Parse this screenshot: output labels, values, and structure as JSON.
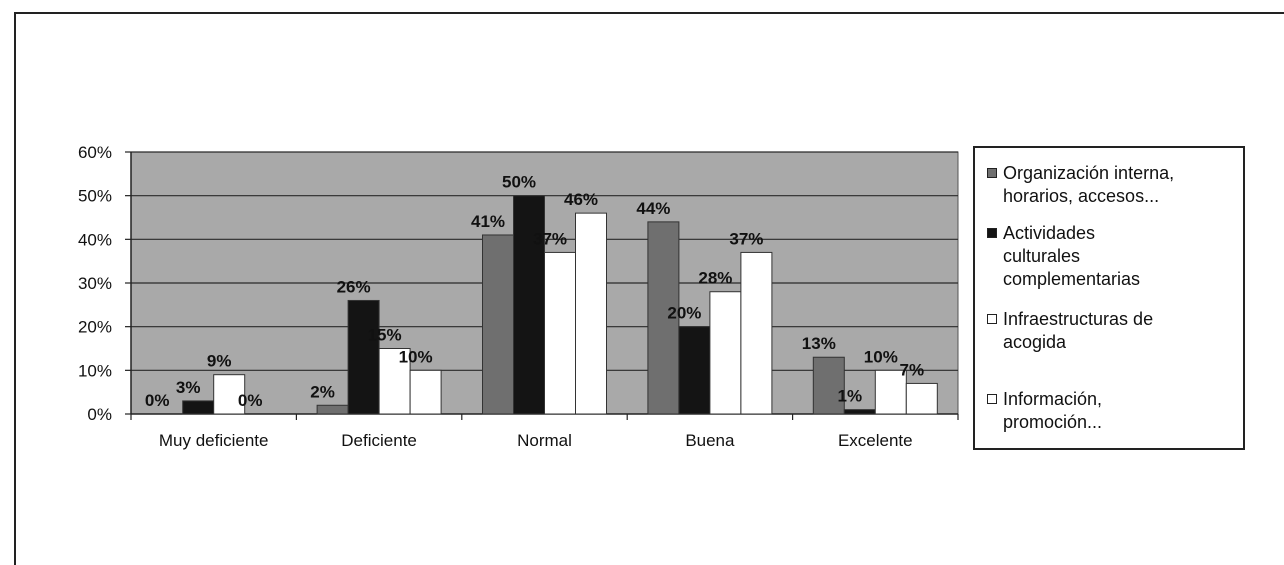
{
  "chart_data": {
    "type": "bar",
    "categories": [
      "Muy deficiente",
      "Deficiente",
      "Normal",
      "Buena",
      "Excelente"
    ],
    "yticks": [
      "0%",
      "10%",
      "20%",
      "30%",
      "40%",
      "50%",
      "60%"
    ],
    "ylim": [
      0,
      60
    ],
    "grid": true,
    "legend_position": "right",
    "series": [
      {
        "name": "Organización interna, horarios, accesos...",
        "color": "#6f6f6f",
        "values": [
          0,
          2,
          41,
          44,
          13
        ],
        "labels": [
          "0%",
          "2%",
          "41%",
          "44%",
          "13%"
        ]
      },
      {
        "name": "Actividades culturales complementarias",
        "color": "#141414",
        "values": [
          3,
          26,
          50,
          20,
          1
        ],
        "labels": [
          "3%",
          "26%",
          "50%",
          "20%",
          "1%"
        ]
      },
      {
        "name": "Infraestructuras de acogida",
        "color": "#ffffff",
        "values": [
          9,
          15,
          37,
          28,
          10
        ],
        "labels": [
          "9%",
          "15%",
          "37%",
          "28%",
          "10%"
        ]
      },
      {
        "name": "Información, promoción...",
        "color": "#ffffff",
        "values": [
          0,
          10,
          46,
          37,
          7
        ],
        "labels": [
          "0%",
          "10%",
          "46%",
          "37%",
          "7%"
        ]
      }
    ],
    "plot_background": "#a9a9a9"
  },
  "legend": {
    "items": [
      {
        "line1": "Organización interna,",
        "line2": "horarios, accesos..."
      },
      {
        "line1": "Actividades",
        "line2": "culturales",
        "line3": "complementarias"
      },
      {
        "line1": "Infraestructuras de",
        "line2": "acogida"
      },
      {
        "line1": "Información,",
        "line2": "promoción..."
      }
    ]
  }
}
